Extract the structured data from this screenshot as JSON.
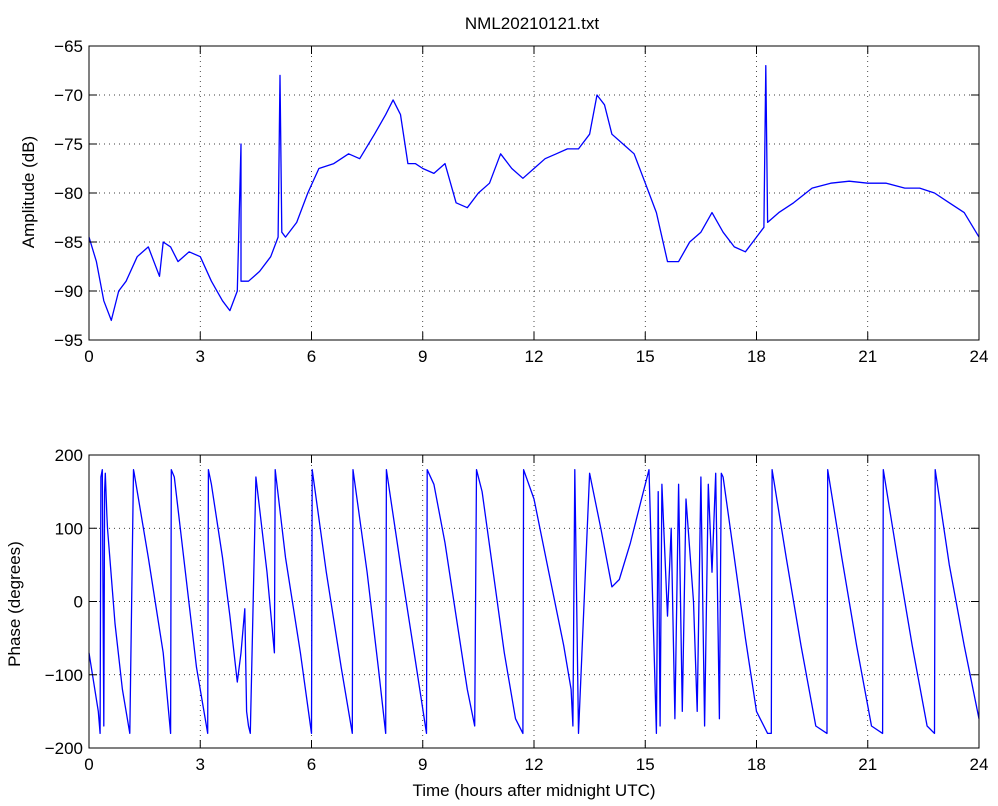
{
  "chart_data": [
    {
      "type": "line",
      "title": "NML20210121.txt",
      "xlabel": "",
      "ylabel": "Amplitude (dB)",
      "xlim": [
        0,
        24
      ],
      "ylim": [
        -95,
        -65
      ],
      "xticks": [
        0,
        3,
        6,
        9,
        12,
        15,
        18,
        21,
        24
      ],
      "yticks": [
        -95,
        -90,
        -85,
        -80,
        -75,
        -70,
        -65
      ],
      "xtick_labels": [
        "0",
        "3",
        "6",
        "9",
        "12",
        "15",
        "18",
        "21",
        "24"
      ],
      "ytick_labels": [
        "−95",
        "−90",
        "−85",
        "−80",
        "−75",
        "−70",
        "−65"
      ],
      "grid": true,
      "series": [
        {
          "color": "#0000ff",
          "x": [
            0,
            0.2,
            0.4,
            0.6,
            0.8,
            1.0,
            1.3,
            1.6,
            1.9,
            2.0,
            2.2,
            2.4,
            2.7,
            3.0,
            3.3,
            3.6,
            3.8,
            4.0,
            4.1,
            4.1,
            4.3,
            4.6,
            4.9,
            5.1,
            5.15,
            5.2,
            5.3,
            5.6,
            5.9,
            6.2,
            6.6,
            7.0,
            7.3,
            7.7,
            8.0,
            8.2,
            8.4,
            8.6,
            8.8,
            9.0,
            9.3,
            9.6,
            9.9,
            10.2,
            10.5,
            10.8,
            11.1,
            11.4,
            11.7,
            12.0,
            12.3,
            12.6,
            12.9,
            13.2,
            13.5,
            13.7,
            13.9,
            14.1,
            14.4,
            14.7,
            15.0,
            15.3,
            15.6,
            15.9,
            16.2,
            16.5,
            16.8,
            17.1,
            17.4,
            17.7,
            18.0,
            18.2,
            18.25,
            18.3,
            18.6,
            19.0,
            19.5,
            20.0,
            20.5,
            21.0,
            21.5,
            22.0,
            22.4,
            22.8,
            23.2,
            23.6,
            24.0
          ],
          "y": [
            -84.5,
            -87,
            -91,
            -93,
            -90,
            -89,
            -86.5,
            -85.5,
            -88.5,
            -85,
            -85.5,
            -87,
            -86,
            -86.5,
            -89,
            -91,
            -92,
            -90,
            -75,
            -89,
            -89,
            -88,
            -86.5,
            -84.5,
            -68,
            -84,
            -84.5,
            -83,
            -80,
            -77.5,
            -77,
            -76,
            -76.5,
            -74,
            -72,
            -70.5,
            -72,
            -77,
            -77,
            -77.5,
            -78,
            -77,
            -81,
            -81.5,
            -80,
            -79,
            -76,
            -77.5,
            -78.5,
            -77.5,
            -76.5,
            -76,
            -75.5,
            -75.5,
            -74,
            -70,
            -71,
            -74,
            -75,
            -76,
            -79,
            -82,
            -87,
            -87,
            -85,
            -84,
            -82,
            -84,
            -85.5,
            -86,
            -84.5,
            -83.5,
            -67,
            -83,
            -82,
            -81,
            -79.5,
            -79,
            -78.8,
            -79,
            -79,
            -79.5,
            -79.5,
            -80,
            -81,
            -82,
            -84.5
          ]
        }
      ]
    },
    {
      "type": "line",
      "title": "",
      "xlabel": "Time (hours after midnight UTC)",
      "ylabel": "Phase (degrees)",
      "xlim": [
        0,
        24
      ],
      "ylim": [
        -200,
        200
      ],
      "xticks": [
        0,
        3,
        6,
        9,
        12,
        15,
        18,
        21,
        24
      ],
      "yticks": [
        -200,
        -100,
        0,
        100,
        200
      ],
      "xtick_labels": [
        "0",
        "3",
        "6",
        "9",
        "12",
        "15",
        "18",
        "21",
        "24"
      ],
      "ytick_labels": [
        "−200",
        "−100",
        "0",
        "100",
        "200"
      ],
      "grid": true,
      "series": [
        {
          "color": "#0000ff",
          "x": [
            0,
            0.25,
            0.3,
            0.32,
            0.36,
            0.4,
            0.42,
            0.44,
            0.48,
            0.5,
            0.7,
            0.9,
            1.1,
            1.2,
            1.22,
            1.6,
            2.0,
            2.2,
            2.22,
            2.3,
            2.6,
            2.9,
            3.2,
            3.22,
            3.3,
            3.6,
            3.8,
            4.0,
            4.1,
            4.2,
            4.25,
            4.3,
            4.35,
            4.5,
            4.8,
            5.0,
            5.02,
            5.3,
            5.7,
            6.0,
            6.02,
            6.4,
            6.8,
            7.1,
            7.12,
            7.5,
            7.8,
            8.0,
            8.02,
            8.4,
            8.8,
            9.1,
            9.12,
            9.3,
            9.6,
            9.9,
            10.2,
            10.4,
            10.45,
            10.6,
            10.9,
            11.2,
            11.5,
            11.7,
            11.72,
            12.0,
            12.4,
            12.8,
            13.0,
            13.05,
            13.1,
            13.2,
            13.5,
            13.8,
            14.1,
            14.3,
            14.6,
            14.9,
            15.1,
            15.3,
            15.35,
            15.4,
            15.45,
            15.6,
            15.7,
            15.8,
            15.9,
            16.0,
            16.1,
            16.3,
            16.4,
            16.5,
            16.6,
            16.7,
            16.8,
            16.9,
            17.0,
            17.05,
            17.1,
            17.4,
            17.7,
            18.0,
            18.3,
            18.4,
            18.42,
            18.8,
            19.2,
            19.6,
            19.9,
            19.92,
            20.3,
            20.7,
            21.1,
            21.4,
            21.42,
            21.8,
            22.2,
            22.6,
            22.8,
            22.82,
            23.2,
            23.6,
            24.0
          ],
          "y": [
            -70,
            -150,
            -180,
            170,
            180,
            -170,
            150,
            175,
            120,
            100,
            -30,
            -120,
            -180,
            180,
            175,
            60,
            -70,
            -180,
            180,
            170,
            40,
            -90,
            -180,
            180,
            160,
            60,
            -20,
            -110,
            -70,
            -10,
            -150,
            -170,
            -180,
            170,
            40,
            -70,
            180,
            60,
            -70,
            -180,
            180,
            40,
            -90,
            -180,
            180,
            40,
            -90,
            -180,
            180,
            50,
            -80,
            -180,
            180,
            160,
            80,
            -20,
            -120,
            -170,
            180,
            150,
            40,
            -70,
            -160,
            -180,
            180,
            140,
            40,
            -60,
            -120,
            -170,
            180,
            -180,
            175,
            100,
            20,
            30,
            80,
            140,
            180,
            -180,
            150,
            -170,
            160,
            -20,
            100,
            -160,
            160,
            -150,
            140,
            0,
            -150,
            170,
            -170,
            160,
            40,
            175,
            -160,
            175,
            170,
            60,
            -50,
            -150,
            -180,
            -180,
            180,
            60,
            -60,
            -170,
            -180,
            180,
            60,
            -60,
            -170,
            -180,
            180,
            60,
            -60,
            -170,
            -180,
            180,
            50,
            -60,
            -160
          ]
        }
      ]
    }
  ]
}
